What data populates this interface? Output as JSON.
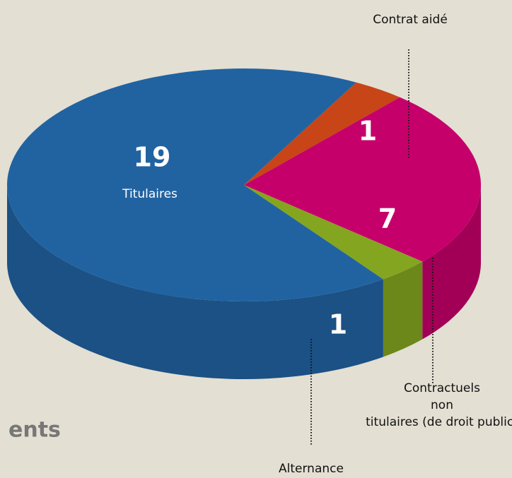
{
  "chart_data": {
    "type": "pie",
    "categories": [
      "Titulaires",
      "Contrat aidé",
      "Contractuels non titulaires (de droit public)",
      "Alternance"
    ],
    "values": [
      19,
      1,
      7,
      1
    ],
    "colors": [
      "#2163a1",
      "#c84518",
      "#c6006a",
      "#84a520"
    ],
    "annotation": "ents"
  }
}
